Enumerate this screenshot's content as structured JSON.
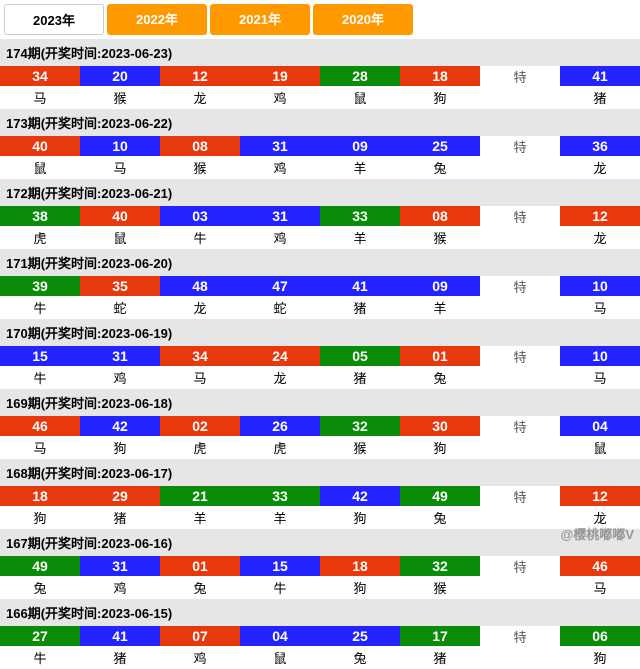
{
  "tabs": [
    {
      "label": "2023年",
      "active": true
    },
    {
      "label": "2022年",
      "active": false
    },
    {
      "label": "2021年",
      "active": false
    },
    {
      "label": "2020年",
      "active": false
    }
  ],
  "colors": {
    "red": "#e8380d",
    "blue": "#2323ff",
    "green": "#0a8c0a",
    "tab_inactive_bg": "#ff9900",
    "header_bg": "#e6e6e6"
  },
  "special_label": "特",
  "watermark": "@樱桃嘟嘟V",
  "issues": [
    {
      "title": "174期(开奖时间:2023-06-23)",
      "cells": [
        {
          "num": "34",
          "color": "red",
          "label": "马"
        },
        {
          "num": "20",
          "color": "blue",
          "label": "猴"
        },
        {
          "num": "12",
          "color": "red",
          "label": "龙"
        },
        {
          "num": "19",
          "color": "red",
          "label": "鸡"
        },
        {
          "num": "28",
          "color": "green",
          "label": "鼠"
        },
        {
          "num": "18",
          "color": "red",
          "label": "狗"
        }
      ],
      "special": {
        "num": "41",
        "color": "blue",
        "label": "猪"
      }
    },
    {
      "title": "173期(开奖时间:2023-06-22)",
      "cells": [
        {
          "num": "40",
          "color": "red",
          "label": "鼠"
        },
        {
          "num": "10",
          "color": "blue",
          "label": "马"
        },
        {
          "num": "08",
          "color": "red",
          "label": "猴"
        },
        {
          "num": "31",
          "color": "blue",
          "label": "鸡"
        },
        {
          "num": "09",
          "color": "blue",
          "label": "羊"
        },
        {
          "num": "25",
          "color": "blue",
          "label": "兔"
        }
      ],
      "special": {
        "num": "36",
        "color": "blue",
        "label": "龙"
      }
    },
    {
      "title": "172期(开奖时间:2023-06-21)",
      "cells": [
        {
          "num": "38",
          "color": "green",
          "label": "虎"
        },
        {
          "num": "40",
          "color": "red",
          "label": "鼠"
        },
        {
          "num": "03",
          "color": "blue",
          "label": "牛"
        },
        {
          "num": "31",
          "color": "blue",
          "label": "鸡"
        },
        {
          "num": "33",
          "color": "green",
          "label": "羊"
        },
        {
          "num": "08",
          "color": "red",
          "label": "猴"
        }
      ],
      "special": {
        "num": "12",
        "color": "red",
        "label": "龙"
      }
    },
    {
      "title": "171期(开奖时间:2023-06-20)",
      "cells": [
        {
          "num": "39",
          "color": "green",
          "label": "牛"
        },
        {
          "num": "35",
          "color": "red",
          "label": "蛇"
        },
        {
          "num": "48",
          "color": "blue",
          "label": "龙"
        },
        {
          "num": "47",
          "color": "blue",
          "label": "蛇"
        },
        {
          "num": "41",
          "color": "blue",
          "label": "猪"
        },
        {
          "num": "09",
          "color": "blue",
          "label": "羊"
        }
      ],
      "special": {
        "num": "10",
        "color": "blue",
        "label": "马"
      }
    },
    {
      "title": "170期(开奖时间:2023-06-19)",
      "cells": [
        {
          "num": "15",
          "color": "blue",
          "label": "牛"
        },
        {
          "num": "31",
          "color": "blue",
          "label": "鸡"
        },
        {
          "num": "34",
          "color": "red",
          "label": "马"
        },
        {
          "num": "24",
          "color": "red",
          "label": "龙"
        },
        {
          "num": "05",
          "color": "green",
          "label": "猪"
        },
        {
          "num": "01",
          "color": "red",
          "label": "兔"
        }
      ],
      "special": {
        "num": "10",
        "color": "blue",
        "label": "马"
      }
    },
    {
      "title": "169期(开奖时间:2023-06-18)",
      "cells": [
        {
          "num": "46",
          "color": "red",
          "label": "马"
        },
        {
          "num": "42",
          "color": "blue",
          "label": "狗"
        },
        {
          "num": "02",
          "color": "red",
          "label": "虎"
        },
        {
          "num": "26",
          "color": "blue",
          "label": "虎"
        },
        {
          "num": "32",
          "color": "green",
          "label": "猴"
        },
        {
          "num": "30",
          "color": "red",
          "label": "狗"
        }
      ],
      "special": {
        "num": "04",
        "color": "blue",
        "label": "鼠"
      }
    },
    {
      "title": "168期(开奖时间:2023-06-17)",
      "cells": [
        {
          "num": "18",
          "color": "red",
          "label": "狗"
        },
        {
          "num": "29",
          "color": "red",
          "label": "猪"
        },
        {
          "num": "21",
          "color": "green",
          "label": "羊"
        },
        {
          "num": "33",
          "color": "green",
          "label": "羊"
        },
        {
          "num": "42",
          "color": "blue",
          "label": "狗"
        },
        {
          "num": "49",
          "color": "green",
          "label": "兔"
        }
      ],
      "special": {
        "num": "12",
        "color": "red",
        "label": "龙"
      }
    },
    {
      "title": "167期(开奖时间:2023-06-16)",
      "cells": [
        {
          "num": "49",
          "color": "green",
          "label": "兔"
        },
        {
          "num": "31",
          "color": "blue",
          "label": "鸡"
        },
        {
          "num": "01",
          "color": "red",
          "label": "兔"
        },
        {
          "num": "15",
          "color": "blue",
          "label": "牛"
        },
        {
          "num": "18",
          "color": "red",
          "label": "狗"
        },
        {
          "num": "32",
          "color": "green",
          "label": "猴"
        }
      ],
      "special": {
        "num": "46",
        "color": "red",
        "label": "马"
      }
    },
    {
      "title": "166期(开奖时间:2023-06-15)",
      "cells": [
        {
          "num": "27",
          "color": "green",
          "label": "牛"
        },
        {
          "num": "41",
          "color": "blue",
          "label": "猪"
        },
        {
          "num": "07",
          "color": "red",
          "label": "鸡"
        },
        {
          "num": "04",
          "color": "blue",
          "label": "鼠"
        },
        {
          "num": "25",
          "color": "blue",
          "label": "兔"
        },
        {
          "num": "17",
          "color": "green",
          "label": "猪"
        }
      ],
      "special": {
        "num": "06",
        "color": "green",
        "label": "狗"
      }
    }
  ]
}
